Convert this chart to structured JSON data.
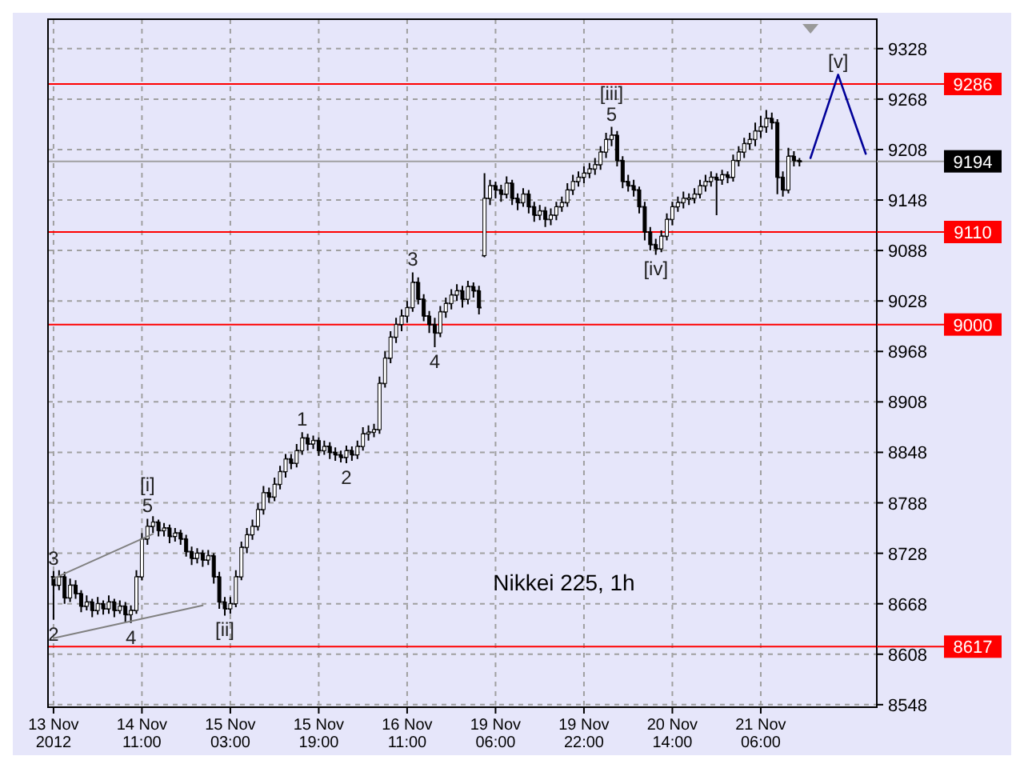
{
  "chart_data": {
    "type": "candlestick",
    "color": "#000000",
    "categories": [
      "13 Nov 2012",
      null,
      null,
      null,
      null,
      null,
      null,
      null,
      null,
      null,
      null,
      null,
      null,
      null,
      null,
      null,
      "14 Nov 11:00",
      null,
      null,
      null,
      null,
      null,
      null,
      null,
      null,
      null,
      null,
      null,
      null,
      null,
      null,
      null,
      "15 Nov 03:00",
      null,
      null,
      null,
      null,
      null,
      null,
      null,
      null,
      null,
      null,
      null,
      null,
      null,
      null,
      null,
      "15 Nov 19:00",
      null,
      null,
      null,
      null,
      null,
      null,
      null,
      null,
      null,
      null,
      null,
      null,
      null,
      null,
      null,
      "16 Nov 11:00",
      null,
      null,
      null,
      null,
      null,
      null,
      null,
      null,
      null,
      null,
      null,
      null,
      null,
      null,
      null,
      "19 Nov 06:00",
      null,
      null,
      null,
      null,
      null,
      null,
      null,
      null,
      null,
      null,
      null,
      null,
      null,
      null,
      null,
      "19 Nov 22:00",
      null,
      null,
      null,
      null,
      null,
      null,
      null,
      null,
      null,
      null,
      null,
      null,
      null,
      null,
      null,
      "20 Nov 14:00",
      null,
      null,
      null,
      null,
      null,
      null,
      null,
      null,
      null,
      null,
      null,
      null,
      null,
      null,
      null,
      "21 Nov 06:00",
      null,
      null,
      null,
      null,
      null,
      null,
      null,
      null,
      null,
      null,
      null,
      null,
      null,
      null,
      null,
      null,
      null,
      null,
      null,
      null
    ],
    "ohlc": [
      [
        8700,
        8707,
        8649,
        8690
      ],
      [
        8690,
        8708,
        8684,
        8700
      ],
      [
        8700,
        8706,
        8668,
        8675
      ],
      [
        8675,
        8698,
        8670,
        8690
      ],
      [
        8690,
        8696,
        8674,
        8680
      ],
      [
        8680,
        8684,
        8658,
        8665
      ],
      [
        8665,
        8678,
        8660,
        8670
      ],
      [
        8670,
        8674,
        8652,
        8660
      ],
      [
        8660,
        8676,
        8655,
        8668
      ],
      [
        8668,
        8672,
        8655,
        8662
      ],
      [
        8662,
        8678,
        8656,
        8670
      ],
      [
        8670,
        8674,
        8652,
        8660
      ],
      [
        8660,
        8672,
        8656,
        8665
      ],
      [
        8665,
        8670,
        8646,
        8655
      ],
      [
        8655,
        8666,
        8645,
        8660
      ],
      [
        8660,
        8708,
        8656,
        8700
      ],
      [
        8700,
        8752,
        8696,
        8745
      ],
      [
        8745,
        8769,
        8738,
        8760
      ],
      [
        8760,
        8772,
        8752,
        8765
      ],
      [
        8765,
        8768,
        8748,
        8755
      ],
      [
        8755,
        8764,
        8748,
        8758
      ],
      [
        8758,
        8762,
        8740,
        8748
      ],
      [
        8748,
        8758,
        8742,
        8752
      ],
      [
        8752,
        8756,
        8738,
        8745
      ],
      [
        8745,
        8750,
        8724,
        8730
      ],
      [
        8730,
        8736,
        8714,
        8722
      ],
      [
        8722,
        8734,
        8716,
        8728
      ],
      [
        8728,
        8732,
        8712,
        8720
      ],
      [
        8720,
        8732,
        8714,
        8725
      ],
      [
        8725,
        8728,
        8692,
        8700
      ],
      [
        8700,
        8706,
        8662,
        8670
      ],
      [
        8670,
        8676,
        8654,
        8662
      ],
      [
        8662,
        8676,
        8656,
        8668
      ],
      [
        8668,
        8708,
        8664,
        8700
      ],
      [
        8700,
        8742,
        8696,
        8735
      ],
      [
        8735,
        8758,
        8728,
        8750
      ],
      [
        8750,
        8768,
        8744,
        8760
      ],
      [
        8760,
        8788,
        8755,
        8780
      ],
      [
        8780,
        8808,
        8774,
        8800
      ],
      [
        8800,
        8806,
        8788,
        8795
      ],
      [
        8795,
        8818,
        8790,
        8810
      ],
      [
        8810,
        8832,
        8804,
        8825
      ],
      [
        8825,
        8846,
        8818,
        8840
      ],
      [
        8840,
        8846,
        8828,
        8835
      ],
      [
        8835,
        8858,
        8830,
        8850
      ],
      [
        8850,
        8872,
        8845,
        8865
      ],
      [
        8865,
        8870,
        8850,
        8858
      ],
      [
        8858,
        8868,
        8852,
        8862
      ],
      [
        8862,
        8866,
        8844,
        8850
      ],
      [
        8850,
        8862,
        8845,
        8855
      ],
      [
        8855,
        8860,
        8840,
        8848
      ],
      [
        8848,
        8854,
        8838,
        8845
      ],
      [
        8845,
        8850,
        8836,
        8842
      ],
      [
        8842,
        8856,
        8835,
        8850
      ],
      [
        8850,
        8855,
        8838,
        8845
      ],
      [
        8845,
        8862,
        8840,
        8855
      ],
      [
        8855,
        8878,
        8850,
        8870
      ],
      [
        8870,
        8880,
        8862,
        8872
      ],
      [
        8872,
        8882,
        8866,
        8875
      ],
      [
        8875,
        8938,
        8870,
        8930
      ],
      [
        8930,
        8968,
        8925,
        8960
      ],
      [
        8960,
        8992,
        8954,
        8985
      ],
      [
        8985,
        9008,
        8978,
        9000
      ],
      [
        9000,
        9018,
        8992,
        9010
      ],
      [
        9010,
        9028,
        9002,
        9020
      ],
      [
        9020,
        9062,
        9015,
        9050
      ],
      [
        9050,
        9056,
        9024,
        9030
      ],
      [
        9030,
        9036,
        9004,
        9010
      ],
      [
        9010,
        9016,
        8990,
        9000
      ],
      [
        9000,
        9008,
        8973,
        8990
      ],
      [
        8990,
        9022,
        8985,
        9015
      ],
      [
        9015,
        9032,
        9008,
        9025
      ],
      [
        9025,
        9042,
        9018,
        9035
      ],
      [
        9035,
        9048,
        9028,
        9040
      ],
      [
        9040,
        9046,
        9020,
        9030
      ],
      [
        9030,
        9052,
        9024,
        9045
      ],
      [
        9045,
        9050,
        9032,
        9040
      ],
      [
        9040,
        9046,
        9012,
        9020
      ],
      [
        9082,
        9180,
        9080,
        9150
      ],
      [
        9150,
        9172,
        9142,
        9165
      ],
      [
        9165,
        9170,
        9150,
        9160
      ],
      [
        9160,
        9166,
        9146,
        9155
      ],
      [
        9155,
        9176,
        9150,
        9168
      ],
      [
        9168,
        9172,
        9142,
        9150
      ],
      [
        9150,
        9156,
        9136,
        9145
      ],
      [
        9145,
        9162,
        9140,
        9155
      ],
      [
        9155,
        9160,
        9132,
        9140
      ],
      [
        9140,
        9146,
        9122,
        9130
      ],
      [
        9130,
        9142,
        9124,
        9135
      ],
      [
        9135,
        9140,
        9116,
        9125
      ],
      [
        9125,
        9138,
        9118,
        9130
      ],
      [
        9130,
        9146,
        9124,
        9140
      ],
      [
        9140,
        9152,
        9134,
        9145
      ],
      [
        9145,
        9168,
        9140,
        9160
      ],
      [
        9160,
        9178,
        9154,
        9170
      ],
      [
        9170,
        9182,
        9164,
        9175
      ],
      [
        9175,
        9188,
        9168,
        9180
      ],
      [
        9180,
        9192,
        9174,
        9185
      ],
      [
        9185,
        9198,
        9178,
        9190
      ],
      [
        9190,
        9212,
        9184,
        9205
      ],
      [
        9205,
        9228,
        9198,
        9220
      ],
      [
        9220,
        9235,
        9212,
        9225
      ],
      [
        9225,
        9230,
        9188,
        9195
      ],
      [
        9195,
        9200,
        9162,
        9170
      ],
      [
        9170,
        9178,
        9158,
        9165
      ],
      [
        9165,
        9172,
        9152,
        9160
      ],
      [
        9160,
        9164,
        9132,
        9140
      ],
      [
        9140,
        9146,
        9100,
        9110
      ],
      [
        9110,
        9116,
        9088,
        9095
      ],
      [
        9095,
        9102,
        9083,
        9090
      ],
      [
        9090,
        9112,
        9086,
        9105
      ],
      [
        9105,
        9132,
        9100,
        9125
      ],
      [
        9125,
        9146,
        9118,
        9140
      ],
      [
        9140,
        9152,
        9134,
        9145
      ],
      [
        9145,
        9158,
        9138,
        9150
      ],
      [
        9150,
        9156,
        9142,
        9150
      ],
      [
        9150,
        9162,
        9144,
        9155
      ],
      [
        9155,
        9172,
        9150,
        9165
      ],
      [
        9165,
        9178,
        9158,
        9170
      ],
      [
        9170,
        9182,
        9164,
        9175
      ],
      [
        9175,
        9180,
        9130,
        9172
      ],
      [
        9172,
        9184,
        9166,
        9178
      ],
      [
        9178,
        9182,
        9168,
        9175
      ],
      [
        9175,
        9202,
        9170,
        9195
      ],
      [
        9195,
        9212,
        9188,
        9205
      ],
      [
        9205,
        9222,
        9198,
        9215
      ],
      [
        9215,
        9228,
        9208,
        9220
      ],
      [
        9220,
        9240,
        9212,
        9230
      ],
      [
        9230,
        9248,
        9222,
        9235
      ],
      [
        9235,
        9255,
        9228,
        9245
      ],
      [
        9245,
        9252,
        9232,
        9240
      ],
      [
        9240,
        9244,
        9155,
        9175
      ],
      [
        9175,
        9182,
        9152,
        9160
      ],
      [
        9160,
        9210,
        9156,
        9200
      ],
      [
        9200,
        9206,
        9188,
        9195
      ],
      [
        9195,
        9198,
        9188,
        9194
      ],
      null,
      null,
      null,
      null,
      null,
      null,
      null,
      null,
      null,
      null,
      null,
      null,
      null
    ],
    "series": [
      {
        "type": "line",
        "color": "#000099",
        "values": [
          null,
          null,
          null,
          null,
          null,
          null,
          null,
          null,
          null,
          null,
          null,
          null,
          null,
          null,
          null,
          null,
          null,
          null,
          null,
          null,
          null,
          null,
          null,
          null,
          null,
          null,
          null,
          null,
          null,
          null,
          null,
          null,
          null,
          null,
          null,
          null,
          null,
          null,
          null,
          null,
          null,
          null,
          null,
          null,
          null,
          null,
          null,
          null,
          null,
          null,
          null,
          null,
          null,
          null,
          null,
          null,
          null,
          null,
          null,
          null,
          null,
          null,
          null,
          null,
          null,
          null,
          null,
          null,
          null,
          null,
          null,
          null,
          null,
          null,
          null,
          null,
          null,
          null,
          null,
          null,
          null,
          null,
          null,
          null,
          null,
          null,
          null,
          null,
          null,
          null,
          null,
          null,
          null,
          null,
          null,
          null,
          null,
          null,
          null,
          null,
          null,
          null,
          null,
          null,
          null,
          null,
          null,
          null,
          null,
          null,
          null,
          null,
          null,
          null,
          null,
          null,
          null,
          null,
          null,
          null,
          null,
          null,
          null,
          null,
          null,
          null,
          null,
          null,
          null,
          null,
          null,
          null,
          null,
          null,
          null,
          null,
          null,
          9198,
          null,
          null,
          null,
          null,
          9297,
          null,
          null,
          null,
          null,
          9203,
          null
        ]
      },
      {
        "type": "line",
        "color": "#808080",
        "values": [
          8698,
          null,
          null,
          null,
          null,
          null,
          null,
          null,
          null,
          null,
          null,
          null,
          null,
          null,
          null,
          null,
          null,
          null,
          8751,
          null,
          null,
          null,
          null,
          null,
          null,
          null,
          null,
          null,
          null,
          null,
          null,
          null,
          null,
          null,
          null,
          null,
          null,
          null,
          null,
          null,
          null,
          null,
          null,
          null,
          null,
          null,
          null,
          null,
          null,
          null,
          null,
          null,
          null,
          null,
          null,
          null,
          null,
          null,
          null,
          null,
          null,
          null,
          null,
          null,
          null,
          null,
          null,
          null,
          null,
          null,
          null,
          null,
          null,
          null,
          null,
          null,
          null,
          null,
          null,
          null,
          null,
          null,
          null,
          null,
          null,
          null,
          null,
          null,
          null,
          null,
          null,
          null,
          null,
          null,
          null,
          null,
          null,
          null,
          null,
          null,
          null,
          null,
          null,
          null,
          null,
          null,
          null,
          null,
          null,
          null,
          null,
          null,
          null,
          null,
          null,
          null,
          null,
          null,
          null,
          null,
          null,
          null,
          null,
          null,
          null,
          null,
          null,
          null,
          null,
          null,
          null,
          null,
          null,
          null,
          null,
          null,
          null,
          null,
          null,
          null,
          null,
          null,
          null,
          null,
          null,
          null,
          null,
          null,
          null
        ]
      },
      {
        "type": "line",
        "color": "#808080",
        "values": [
          8627,
          null,
          null,
          null,
          null,
          null,
          null,
          null,
          null,
          null,
          null,
          null,
          null,
          null,
          null,
          null,
          null,
          null,
          null,
          null,
          null,
          null,
          null,
          null,
          null,
          null,
          null,
          8666,
          null,
          null,
          null,
          null,
          null,
          null,
          null,
          null,
          null,
          null,
          null,
          null,
          null,
          null,
          null,
          null,
          null,
          null,
          null,
          null,
          null,
          null,
          null,
          null,
          null,
          null,
          null,
          null,
          null,
          null,
          null,
          null,
          null,
          null,
          null,
          null,
          null,
          null,
          null,
          null,
          null,
          null,
          null,
          null,
          null,
          null,
          null,
          null,
          null,
          null,
          null,
          null,
          null,
          null,
          null,
          null,
          null,
          null,
          null,
          null,
          null,
          null,
          null,
          null,
          null,
          null,
          null,
          null,
          null,
          null,
          null,
          null,
          null,
          null,
          null,
          null,
          null,
          null,
          null,
          null,
          null,
          null,
          null,
          null,
          null,
          null,
          null,
          null,
          null,
          null,
          null,
          null,
          null,
          null,
          null,
          null,
          null,
          null,
          null,
          null,
          null,
          null,
          null,
          null,
          null,
          null,
          null,
          null,
          null,
          null,
          null,
          null,
          null,
          null,
          null,
          null,
          null,
          null,
          null,
          null,
          null
        ]
      }
    ],
    "ylim": [
      8545,
      9363
    ],
    "yticks": [
      8548,
      8608,
      8668,
      8728,
      8788,
      8848,
      8908,
      8968,
      9028,
      9088,
      9148,
      9208,
      9268,
      9328
    ],
    "grid": true,
    "ref_lines": [
      {
        "axis": "y",
        "value": 9286,
        "label": "9286",
        "color": "#ff0000"
      },
      {
        "axis": "y",
        "value": 9194,
        "label": "9194",
        "color": "#a0a0a0"
      },
      {
        "axis": "y",
        "value": 9110,
        "label": "9110",
        "color": "#ff0000"
      },
      {
        "axis": "y",
        "value": 9000,
        "label": "9000",
        "color": "#ff0000"
      },
      {
        "axis": "y",
        "value": 8617,
        "label": "8617",
        "color": "#ff0000"
      }
    ],
    "annotations": [
      {
        "text": "3",
        "y": 8707
      },
      {
        "text": "2",
        "y": 8649
      },
      {
        "text": "4",
        "y": 8645
      },
      {
        "text": "5",
        "y": 8769
      },
      {
        "text": "[i]",
        "y": 8769
      },
      {
        "text": "[ii]",
        "y": 8654
      },
      {
        "text": "1",
        "y": 8872
      },
      {
        "text": "2",
        "y": 8835
      },
      {
        "text": "3",
        "y": 9062
      },
      {
        "text": "4",
        "y": 8973
      },
      {
        "text": "5",
        "y": 9235
      },
      {
        "text": "[iii]",
        "y": 9235
      },
      {
        "text": "[iv]",
        "y": 9083
      },
      {
        "text": "[v]",
        "y": 9297
      },
      "Nikkei 225, 1h"
    ]
  }
}
